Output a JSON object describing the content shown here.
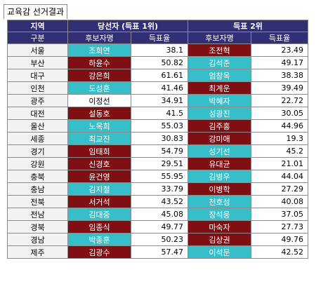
{
  "sheet_title": "교육감 선거결과",
  "header": {
    "region_top": "지역",
    "region_bottom": "구분",
    "group1": "당선자 (득표 1위)",
    "group2": "득표 2위",
    "name_col": "후보자명",
    "rate_col": "득표율"
  },
  "colors": {
    "header": "#332f74",
    "red": "#7f0f12",
    "teal": "#37bfc9",
    "white": "#ffffff"
  },
  "rows": [
    {
      "region": "서울",
      "c1": "조희연",
      "c1_color": "teal",
      "r1": "38.1",
      "c2": "조전혁",
      "c2_color": "red",
      "r2": "23.49"
    },
    {
      "region": "부산",
      "c1": "하윤수",
      "c1_color": "red",
      "r1": "50.82",
      "c2": "김석준",
      "c2_color": "teal",
      "r2": "49.17"
    },
    {
      "region": "대구",
      "c1": "강은희",
      "c1_color": "red",
      "r1": "61.61",
      "c2": "엄창옥",
      "c2_color": "teal",
      "r2": "38.38"
    },
    {
      "region": "인천",
      "c1": "도성훈",
      "c1_color": "teal",
      "r1": "41.46",
      "c2": "최계운",
      "c2_color": "red",
      "r2": "39.49"
    },
    {
      "region": "광주",
      "c1": "이정선",
      "c1_color": "white",
      "r1": "34.91",
      "c2": "박혜자",
      "c2_color": "teal",
      "r2": "22.72"
    },
    {
      "region": "대전",
      "c1": "설동호",
      "c1_color": "red",
      "r1": "41.5",
      "c2": "성광진",
      "c2_color": "teal",
      "r2": "30.05"
    },
    {
      "region": "울산",
      "c1": "노옥희",
      "c1_color": "teal",
      "r1": "55.03",
      "c2": "김주홍",
      "c2_color": "red",
      "r2": "44.96"
    },
    {
      "region": "세종",
      "c1": "최교진",
      "c1_color": "teal",
      "r1": "30.83",
      "c2": "강미애",
      "c2_color": "red",
      "r2": "19.3"
    },
    {
      "region": "경기",
      "c1": "임태희",
      "c1_color": "red",
      "r1": "54.79",
      "c2": "성기선",
      "c2_color": "teal",
      "r2": "45.2"
    },
    {
      "region": "강원",
      "c1": "신경호",
      "c1_color": "red",
      "r1": "29.51",
      "c2": "유대균",
      "c2_color": "red",
      "r2": "21.01"
    },
    {
      "region": "충북",
      "c1": "윤건영",
      "c1_color": "red",
      "r1": "55.95",
      "c2": "김병우",
      "c2_color": "teal",
      "r2": "44.04"
    },
    {
      "region": "충남",
      "c1": "김지철",
      "c1_color": "teal",
      "r1": "33.79",
      "c2": "이병학",
      "c2_color": "red",
      "r2": "27.29"
    },
    {
      "region": "전북",
      "c1": "서거석",
      "c1_color": "red",
      "r1": "43.52",
      "c2": "천호성",
      "c2_color": "teal",
      "r2": "40.08"
    },
    {
      "region": "전남",
      "c1": "김대중",
      "c1_color": "teal",
      "r1": "45.08",
      "c2": "장석웅",
      "c2_color": "teal",
      "r2": "37.05"
    },
    {
      "region": "경북",
      "c1": "임종식",
      "c1_color": "red",
      "r1": "49.77",
      "c2": "마숙자",
      "c2_color": "red",
      "r2": "27.73"
    },
    {
      "region": "경남",
      "c1": "박종훈",
      "c1_color": "teal",
      "r1": "50.23",
      "c2": "김상권",
      "c2_color": "red",
      "r2": "49.76"
    },
    {
      "region": "제주",
      "c1": "김광수",
      "c1_color": "red",
      "r1": "57.47",
      "c2": "이석문",
      "c2_color": "teal",
      "r2": "42.52"
    }
  ]
}
